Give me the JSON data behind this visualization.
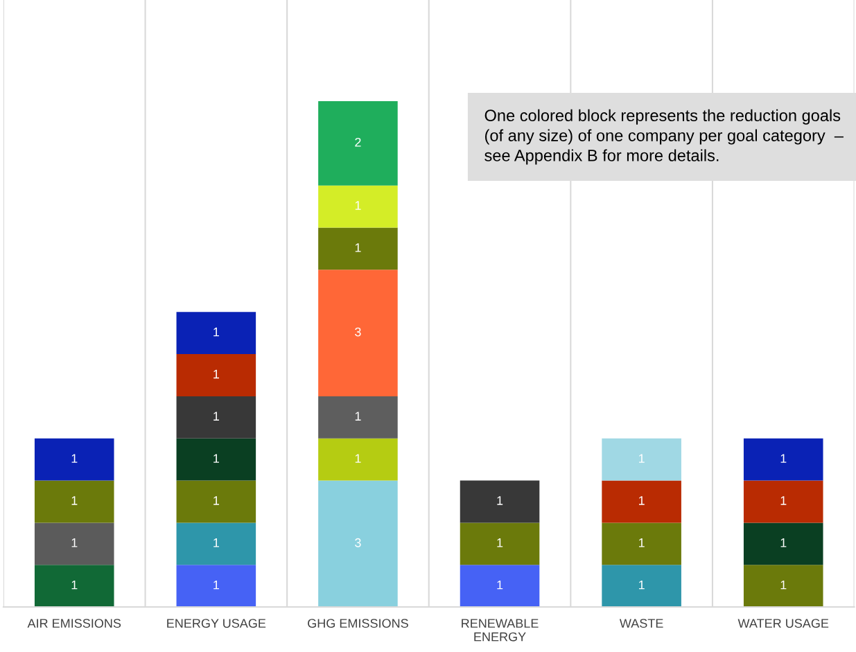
{
  "chart_data": {
    "type": "bar",
    "stacked": true,
    "data_labels": true,
    "grid": "x",
    "legend": false,
    "categories": [
      "AIR EMISSIONS",
      "ENERGY USAGE",
      "GHG EMISSIONS",
      "RENEWABLE\nENERGY",
      "WASTE",
      "WATER USAGE"
    ],
    "series": [
      {
        "values": [
          1,
          1,
          3,
          1,
          1,
          1
        ],
        "colors": [
          "#116936",
          "#4662f5",
          "#89d0de",
          "#4662f5",
          "#2e96aa",
          "#6b7a0b"
        ]
      },
      {
        "values": [
          1,
          1,
          1,
          1,
          1,
          1
        ],
        "colors": [
          "#5b5b5b",
          "#2e96aa",
          "#b5cc12",
          "#6b7a0b",
          "#6b7a0b",
          "#0a3f22"
        ]
      },
      {
        "values": [
          1,
          1,
          1,
          1,
          1,
          1
        ],
        "colors": [
          "#6b7a0b",
          "#6b7a0b",
          "#5e5e5e",
          "#383838",
          "#b92b02",
          "#b92b02"
        ]
      },
      {
        "values": [
          1,
          1,
          3,
          null,
          1,
          1
        ],
        "colors": [
          "#0a22b5",
          "#0a3f22",
          "#ff6737",
          null,
          "#a0d8e4",
          "#0a22b5"
        ]
      },
      {
        "values": [
          null,
          1,
          1,
          null,
          null,
          null
        ],
        "colors": [
          null,
          "#383838",
          "#6b7a0b",
          null,
          null,
          null
        ]
      },
      {
        "values": [
          null,
          1,
          1,
          null,
          null,
          null
        ],
        "colors": [
          null,
          "#b92b02",
          "#d4ed27",
          null,
          null,
          null
        ]
      },
      {
        "values": [
          null,
          1,
          2,
          null,
          null,
          null
        ],
        "colors": [
          null,
          "#0a22b5",
          "#1fae5c",
          null,
          null,
          null
        ]
      }
    ],
    "annotations": [
      "One colored block represents the reduction goals (of any size) of one company per goal category  – see Appendix B for more details."
    ]
  }
}
